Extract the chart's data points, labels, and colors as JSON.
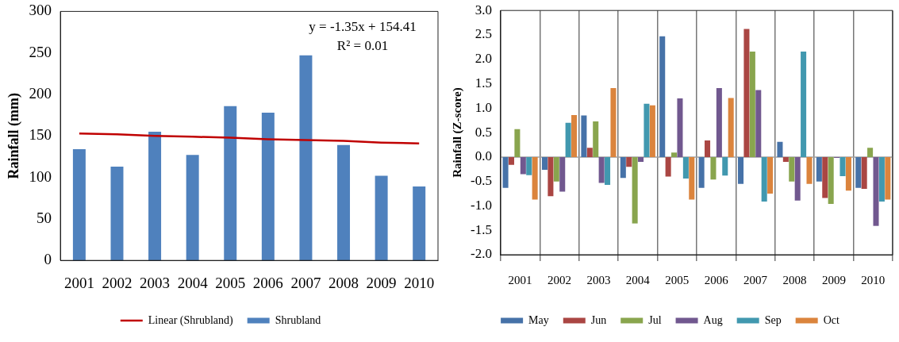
{
  "chart_data": [
    {
      "type": "bar",
      "ylabel": "Rainfall (mm)",
      "categories": [
        "2001",
        "2002",
        "2003",
        "2004",
        "2005",
        "2006",
        "2007",
        "2008",
        "2009",
        "2010"
      ],
      "series": [
        {
          "name": "Shrubland",
          "color": "#4f81bd",
          "values": [
            134,
            113,
            155,
            127,
            186,
            178,
            247,
            139,
            102,
            89
          ]
        },
        {
          "name": "Linear (Shrubland)",
          "type": "line",
          "color": "#c00000",
          "marker": "none",
          "line_style": "solid",
          "values": [
            153,
            152,
            150,
            149,
            148,
            146,
            145,
            144,
            142,
            141
          ]
        }
      ],
      "ylim": [
        0,
        300
      ],
      "yticks": [
        0,
        50,
        100,
        150,
        200,
        250,
        300
      ],
      "grid": false,
      "legend": "bottom",
      "annotations": [
        "y = -1.35x + 154.41",
        "R² = 0.01"
      ]
    },
    {
      "type": "bar",
      "ylabel": "Rainfall (Z-score)",
      "categories": [
        "2001",
        "2002",
        "2003",
        "2004",
        "2005",
        "2006",
        "2007",
        "2008",
        "2009",
        "2010"
      ],
      "series": [
        {
          "name": "May",
          "color": "#4672a8",
          "values": [
            -0.63,
            -0.26,
            0.85,
            -0.43,
            2.47,
            -0.63,
            -0.55,
            0.31,
            -0.5,
            -0.63
          ]
        },
        {
          "name": "Jun",
          "color": "#aa4643",
          "values": [
            -0.16,
            -0.8,
            0.19,
            -0.2,
            -0.4,
            0.34,
            2.62,
            -0.1,
            -0.84,
            -0.65
          ]
        },
        {
          "name": "Jul",
          "color": "#89a54e",
          "values": [
            0.57,
            -0.5,
            0.73,
            -1.36,
            0.09,
            -0.46,
            2.16,
            -0.5,
            -0.96,
            0.19
          ]
        },
        {
          "name": "Aug",
          "color": "#71588f",
          "values": [
            -0.35,
            -0.71,
            -0.53,
            -0.1,
            1.2,
            1.41,
            1.37,
            -0.89,
            -0.02,
            -1.41
          ]
        },
        {
          "name": "Sep",
          "color": "#4198af",
          "values": [
            -0.37,
            0.7,
            -0.57,
            1.09,
            -0.44,
            -0.38,
            -0.91,
            2.16,
            -0.39,
            -0.91
          ]
        },
        {
          "name": "Oct",
          "color": "#db843d",
          "values": [
            -0.87,
            0.86,
            1.41,
            1.06,
            -0.87,
            1.21,
            -0.75,
            -0.55,
            -0.69,
            -0.87
          ]
        }
      ],
      "ylim": [
        -2,
        3
      ],
      "yticks": [
        {
          "value": -2,
          "label": "-2.0"
        },
        {
          "value": -1.5,
          "label": "-1.5"
        },
        {
          "value": -1,
          "label": "-1.0"
        },
        {
          "value": -0.5,
          "label": "-0.5"
        },
        {
          "value": 0,
          "label": "0.0"
        },
        {
          "value": 0.5,
          "label": "0.5"
        },
        {
          "value": 1,
          "label": "1.0"
        },
        {
          "value": 1.5,
          "label": "1.5"
        },
        {
          "value": 2,
          "label": "2.0"
        },
        {
          "value": 2.5,
          "label": "2.5"
        },
        {
          "value": 3,
          "label": "3.0"
        }
      ],
      "grid": "x",
      "legend": "bottom"
    }
  ]
}
